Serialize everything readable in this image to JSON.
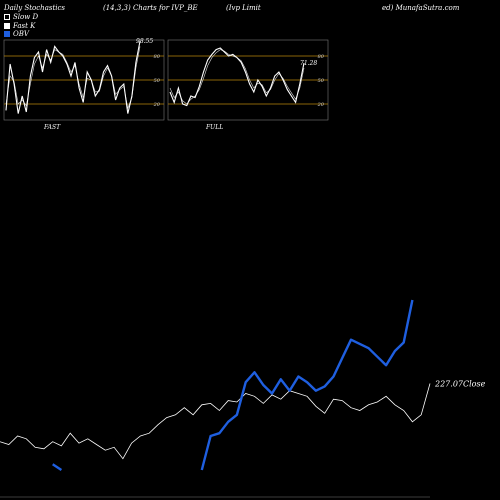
{
  "header": {
    "title_left": "Daily Stochastics",
    "title_mid": "(14,3,3) Charts for IVP_BE",
    "title_company": "(Ivp Limit",
    "title_site": "ed) MunafaSutra.com"
  },
  "legend": [
    {
      "label": "Slow  D",
      "color": "#ffffff",
      "box": "outline"
    },
    {
      "label": "Fast K",
      "color": "#ffffff",
      "box": "filled"
    },
    {
      "label": "OBV",
      "color": "#1f5fe0",
      "box": "filled"
    }
  ],
  "colors": {
    "background": "#000000",
    "grid_line": "#b8860b",
    "obv": "#1f5fe0",
    "price": "#ffffff"
  },
  "chart_data": [
    {
      "type": "line",
      "name": "FAST",
      "label": "FAST",
      "ylim": [
        0,
        100
      ],
      "gridlines": [
        20,
        50,
        80
      ],
      "tick_labels": [
        "80",
        "50",
        "20"
      ],
      "last_value_label": "98.55",
      "series": [
        {
          "name": "Fast K",
          "values": [
            12,
            70,
            45,
            8,
            30,
            10,
            55,
            78,
            85,
            60,
            88,
            72,
            92,
            85,
            80,
            70,
            55,
            72,
            40,
            22,
            60,
            50,
            30,
            38,
            60,
            68,
            55,
            25,
            40,
            45,
            8,
            30,
            72,
            98.55
          ]
        },
        {
          "name": "Slow D",
          "values": [
            20,
            55,
            48,
            20,
            25,
            18,
            45,
            70,
            80,
            65,
            82,
            75,
            88,
            85,
            82,
            72,
            60,
            68,
            45,
            28,
            52,
            50,
            35,
            36,
            55,
            65,
            55,
            32,
            38,
            42,
            15,
            28,
            65,
            92
          ]
        }
      ]
    },
    {
      "type": "line",
      "name": "FULL",
      "label": "FULL",
      "ylim": [
        0,
        100
      ],
      "gridlines": [
        20,
        50,
        80
      ],
      "tick_labels": [
        "80",
        "50",
        "20"
      ],
      "last_value_label": "71.28",
      "series": [
        {
          "name": "Fast K",
          "values": [
            35,
            22,
            40,
            20,
            18,
            30,
            28,
            42,
            60,
            75,
            82,
            88,
            90,
            85,
            80,
            82,
            78,
            72,
            60,
            45,
            35,
            50,
            42,
            30,
            40,
            55,
            60,
            50,
            38,
            30,
            22,
            45,
            71.28
          ]
        },
        {
          "name": "Slow D",
          "values": [
            40,
            28,
            35,
            24,
            20,
            26,
            30,
            38,
            52,
            68,
            78,
            84,
            88,
            86,
            82,
            80,
            78,
            74,
            64,
            50,
            40,
            46,
            44,
            34,
            38,
            50,
            58,
            52,
            42,
            34,
            26,
            40,
            65
          ]
        }
      ]
    },
    {
      "type": "line",
      "name": "Price and OBV",
      "last_value_label": "227.07",
      "last_value_suffix": "Close",
      "series": [
        {
          "name": "Close",
          "values": [
            186,
            184,
            190,
            188,
            182,
            181,
            186,
            183,
            192,
            185,
            188,
            184,
            180,
            182,
            174,
            185,
            190,
            192,
            198,
            203,
            205,
            210,
            205,
            212,
            213,
            208,
            215,
            214,
            220,
            218,
            213,
            219,
            216,
            222,
            220,
            218,
            211,
            206,
            216,
            215,
            210,
            208,
            212,
            214,
            218,
            212,
            208,
            200,
            205,
            227.07
          ]
        },
        {
          "name": "OBV",
          "values": [
            null,
            null,
            null,
            null,
            null,
            null,
            170,
            166,
            null,
            null,
            null,
            null,
            null,
            null,
            null,
            null,
            null,
            null,
            null,
            null,
            null,
            null,
            null,
            166,
            190,
            192,
            200,
            205,
            228,
            235,
            226,
            220,
            230,
            222,
            232,
            228,
            222,
            225,
            232,
            245,
            258,
            255,
            252,
            246,
            240,
            250,
            256,
            286
          ]
        }
      ]
    }
  ]
}
